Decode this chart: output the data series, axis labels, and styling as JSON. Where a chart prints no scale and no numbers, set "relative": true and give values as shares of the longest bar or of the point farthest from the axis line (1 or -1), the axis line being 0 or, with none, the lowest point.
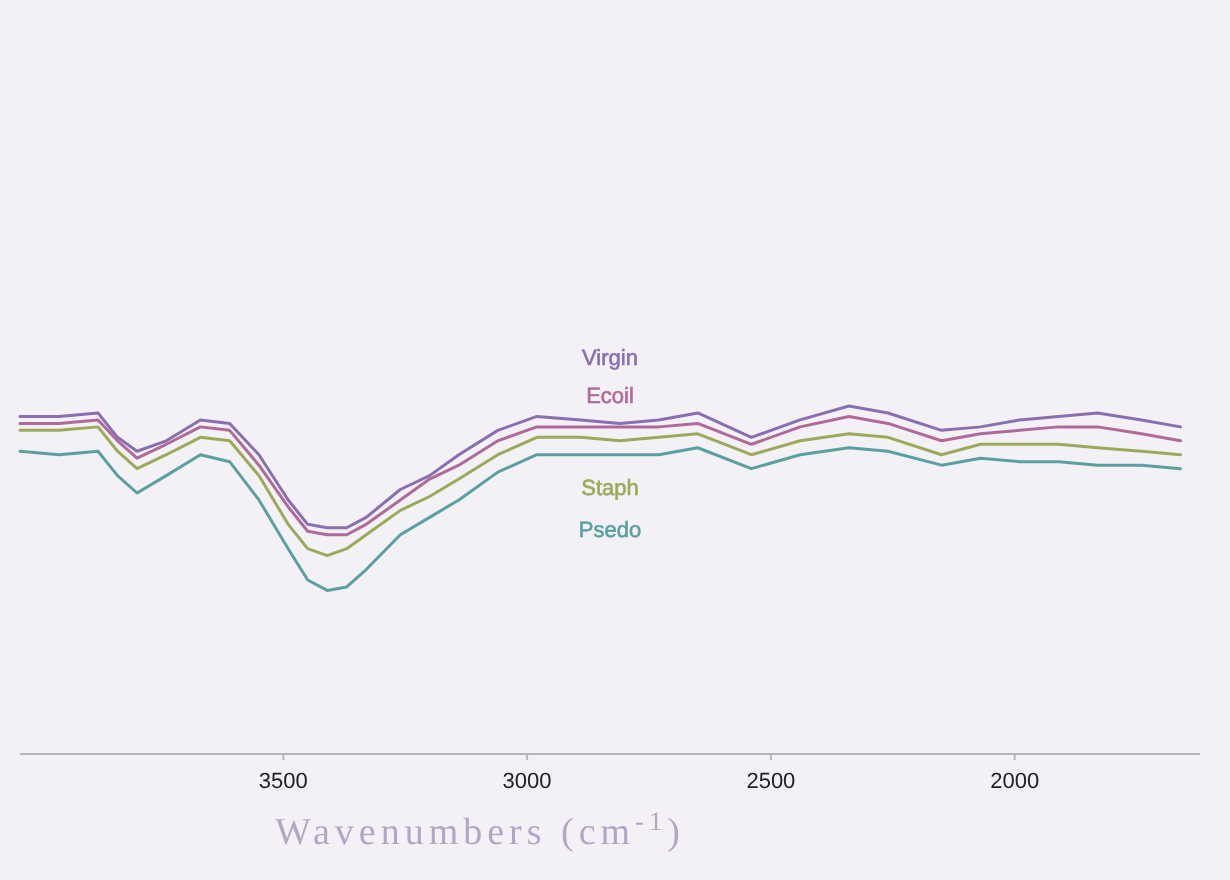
{
  "chart_data": {
    "type": "line",
    "relative": true,
    "xlabel": "Wavenumbers (cm$^{-1}$)",
    "x": [
      4040,
      3960,
      3880,
      3840,
      3800,
      3740,
      3670,
      3610,
      3550,
      3490,
      3450,
      3410,
      3370,
      3330,
      3260,
      3200,
      3140,
      3060,
      2980,
      2890,
      2810,
      2730,
      2650,
      2540,
      2440,
      2340,
      2260,
      2150,
      2070,
      1990,
      1910,
      1830,
      1740,
      1660
    ],
    "xlim": [
      4040,
      1620
    ],
    "xticks": [
      3500,
      3000,
      2500,
      2000
    ],
    "series": [
      {
        "name": "Virgin",
        "color": "#8a6fb0",
        "values": [
          0.97,
          0.97,
          0.98,
          0.91,
          0.87,
          0.9,
          0.96,
          0.95,
          0.86,
          0.73,
          0.66,
          0.65,
          0.65,
          0.68,
          0.76,
          0.8,
          0.86,
          0.93,
          0.97,
          0.96,
          0.95,
          0.96,
          0.98,
          0.91,
          0.96,
          1,
          0.98,
          0.93,
          0.94,
          0.96,
          0.97,
          0.98,
          0.96,
          0.94
        ]
      },
      {
        "name": "Ecoil",
        "color": "#b06a9a",
        "values": [
          0.95,
          0.95,
          0.96,
          0.9,
          0.85,
          0.89,
          0.94,
          0.93,
          0.83,
          0.71,
          0.64,
          0.63,
          0.63,
          0.66,
          0.73,
          0.79,
          0.83,
          0.9,
          0.94,
          0.94,
          0.94,
          0.94,
          0.95,
          0.89,
          0.94,
          0.97,
          0.95,
          0.9,
          0.92,
          0.93,
          0.94,
          0.94,
          0.92,
          0.9
        ]
      },
      {
        "name": "Staph",
        "color": "#9aaa5a",
        "values": [
          0.93,
          0.93,
          0.94,
          0.87,
          0.82,
          0.86,
          0.91,
          0.9,
          0.8,
          0.66,
          0.59,
          0.57,
          0.59,
          0.63,
          0.7,
          0.74,
          0.79,
          0.86,
          0.91,
          0.91,
          0.9,
          0.91,
          0.92,
          0.86,
          0.9,
          0.92,
          0.91,
          0.86,
          0.89,
          0.89,
          0.89,
          0.88,
          0.87,
          0.86
        ]
      },
      {
        "name": "Psedo",
        "color": "#5aa0a0",
        "values": [
          0.87,
          0.86,
          0.87,
          0.8,
          0.75,
          0.8,
          0.86,
          0.84,
          0.73,
          0.59,
          0.5,
          0.47,
          0.48,
          0.53,
          0.63,
          0.68,
          0.73,
          0.81,
          0.86,
          0.86,
          0.86,
          0.86,
          0.88,
          0.82,
          0.86,
          0.88,
          0.87,
          0.83,
          0.85,
          0.84,
          0.84,
          0.83,
          0.83,
          0.82
        ]
      }
    ]
  }
}
